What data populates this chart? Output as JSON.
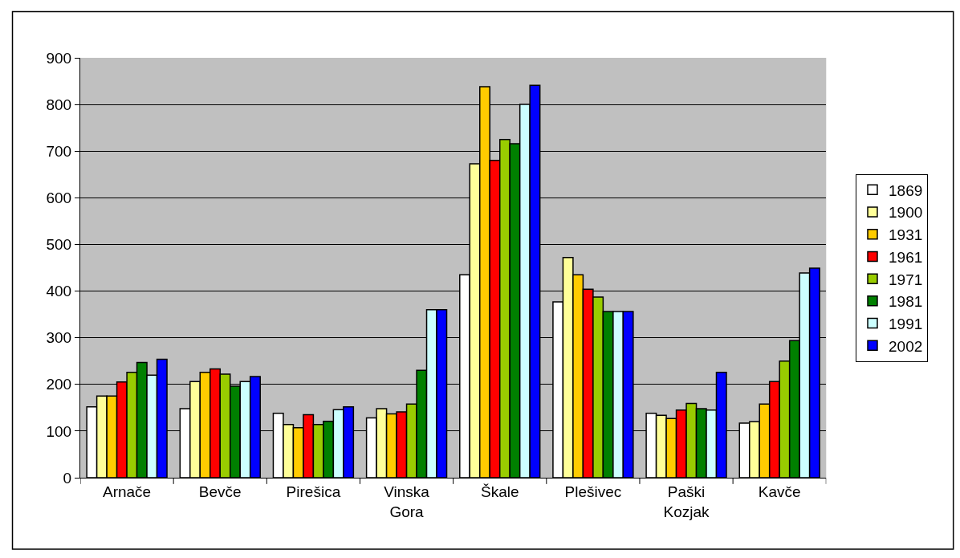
{
  "chart_data": {
    "type": "bar",
    "categories": [
      "Arnače",
      "Bevče",
      "Pirešica",
      "Vinska Gora",
      "Škale",
      "Plešivec",
      "Paški Kozjak",
      "Kavče"
    ],
    "series": [
      {
        "name": "1869",
        "color": "#ffffff",
        "values": [
          152,
          148,
          138,
          128,
          435,
          377,
          138,
          117
        ]
      },
      {
        "name": "1900",
        "color": "#ffff99",
        "values": [
          175,
          206,
          114,
          148,
          673,
          472,
          134,
          120
        ]
      },
      {
        "name": "1931",
        "color": "#ffcc00",
        "values": [
          175,
          226,
          107,
          137,
          838,
          435,
          127,
          158
        ]
      },
      {
        "name": "1961",
        "color": "#ff0000",
        "values": [
          205,
          233,
          135,
          141,
          680,
          404,
          145,
          206
        ]
      },
      {
        "name": "1971",
        "color": "#99cc00",
        "values": [
          226,
          222,
          114,
          158,
          725,
          387,
          159,
          250
        ]
      },
      {
        "name": "1981",
        "color": "#008000",
        "values": [
          247,
          196,
          121,
          230,
          716,
          356,
          148,
          294
        ]
      },
      {
        "name": "1991",
        "color": "#ccffff",
        "values": [
          220,
          206,
          146,
          360,
          800,
          356,
          145,
          439
        ]
      },
      {
        "name": "2002",
        "color": "#0000ff",
        "values": [
          254,
          217,
          152,
          360,
          841,
          356,
          226,
          449
        ]
      }
    ],
    "ylim": [
      0,
      900
    ],
    "yticks": [
      0,
      100,
      200,
      300,
      400,
      500,
      600,
      700,
      800,
      900
    ],
    "grid": "y",
    "legend": "right"
  }
}
